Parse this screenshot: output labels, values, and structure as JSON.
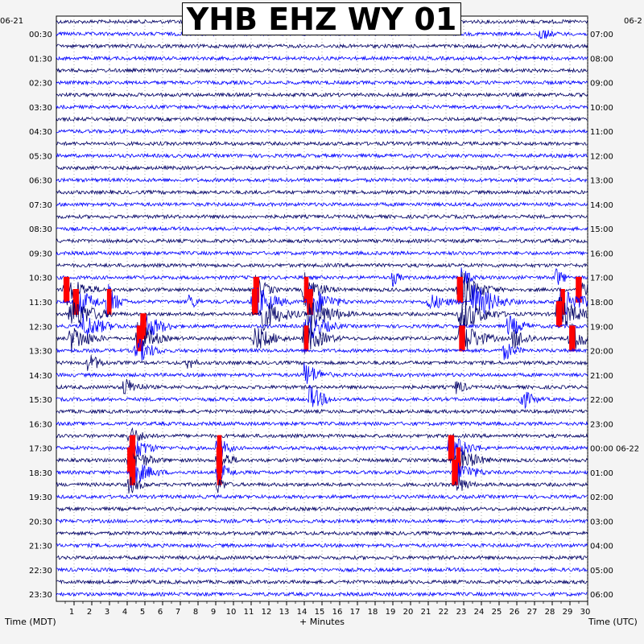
{
  "title": "YHB EHZ WY 01",
  "left_date": "06-21",
  "right_date": "06-2",
  "axis_titles": {
    "left": "Time (MDT)",
    "bottom": "+ Minutes",
    "right": "Time (UTC)"
  },
  "colors": {
    "trace_dark": "#000066",
    "trace_blue": "#0000ff",
    "clipped": "#ff0000",
    "background": "#ffffff",
    "page": "#f4f4f4"
  },
  "chart_data": {
    "type": "line",
    "title": "YHB EHZ WY 01",
    "xlabel": "+ Minutes",
    "ylabel_left": "Time (MDT)",
    "ylabel_right": "Time (UTC)",
    "xlim": [
      0,
      30
    ],
    "x_ticks": [
      1,
      2,
      3,
      4,
      5,
      6,
      7,
      8,
      9,
      10,
      11,
      12,
      13,
      14,
      15,
      16,
      17,
      18,
      19,
      20,
      21,
      22,
      23,
      24,
      25,
      26,
      27,
      28,
      29,
      30
    ],
    "rows_per_hour": 2,
    "num_rows": 48,
    "left_time_labels": [
      "00:30",
      "01:30",
      "02:30",
      "03:30",
      "04:30",
      "05:30",
      "06:30",
      "07:30",
      "08:30",
      "09:30",
      "10:30",
      "11:30",
      "12:30",
      "13:30",
      "14:30",
      "15:30",
      "16:30",
      "17:30",
      "18:30",
      "19:30",
      "20:30",
      "21:30",
      "22:30",
      "23:30"
    ],
    "right_time_labels": [
      "07:00",
      "08:00",
      "09:00",
      "10:00",
      "11:00",
      "12:00",
      "13:00",
      "14:00",
      "15:00",
      "16:00",
      "17:00",
      "18:00",
      "19:00",
      "20:00",
      "21:00",
      "22:00",
      "23:00",
      "00:00 06-22",
      "01:00",
      "02:00",
      "03:00",
      "04:00",
      "05:00",
      "06:00"
    ],
    "trace_colors": [
      "#000066",
      "#0000ff"
    ],
    "events": [
      {
        "row": 1,
        "minute": 27.3,
        "amp": 10,
        "dur": 2.0
      },
      {
        "row": 21,
        "minute": 19.0,
        "amp": 12,
        "dur": 1.2
      },
      {
        "row": 21,
        "minute": 22.8,
        "amp": 16,
        "dur": 1.5
      },
      {
        "row": 21,
        "minute": 28.2,
        "amp": 14,
        "dur": 1.5
      },
      {
        "row": 22,
        "minute": 0.5,
        "amp": 22,
        "dur": 3.0,
        "clip": true
      },
      {
        "row": 22,
        "minute": 11.2,
        "amp": 20,
        "dur": 2.0,
        "clip": true
      },
      {
        "row": 22,
        "minute": 14.0,
        "amp": 24,
        "dur": 2.5,
        "clip": true
      },
      {
        "row": 22,
        "minute": 22.7,
        "amp": 30,
        "dur": 3.0,
        "clip": true
      },
      {
        "row": 22,
        "minute": 29.4,
        "amp": 22,
        "dur": 1.5,
        "clip": true
      },
      {
        "row": 23,
        "minute": 1.0,
        "amp": 22,
        "dur": 3.0,
        "clip": true
      },
      {
        "row": 23,
        "minute": 2.9,
        "amp": 26,
        "dur": 1.5,
        "clip": true
      },
      {
        "row": 23,
        "minute": 7.5,
        "amp": 12,
        "dur": 1.5
      },
      {
        "row": 23,
        "minute": 11.1,
        "amp": 26,
        "dur": 3.0,
        "clip": true
      },
      {
        "row": 23,
        "minute": 14.2,
        "amp": 26,
        "dur": 3.0,
        "clip": true
      },
      {
        "row": 23,
        "minute": 21.0,
        "amp": 12,
        "dur": 3.5
      },
      {
        "row": 23,
        "minute": 23.5,
        "amp": 26,
        "dur": 3.5
      },
      {
        "row": 23,
        "minute": 28.5,
        "amp": 24,
        "dur": 3.0,
        "clip": true
      },
      {
        "row": 24,
        "minute": 0.8,
        "amp": 24,
        "dur": 3.5
      },
      {
        "row": 24,
        "minute": 11.5,
        "amp": 24,
        "dur": 3.5
      },
      {
        "row": 24,
        "minute": 14.2,
        "amp": 26,
        "dur": 3.5
      },
      {
        "row": 24,
        "minute": 22.8,
        "amp": 26,
        "dur": 3.5
      },
      {
        "row": 24,
        "minute": 28.3,
        "amp": 26,
        "dur": 3.0,
        "clip": true
      },
      {
        "row": 25,
        "minute": 1.5,
        "amp": 18,
        "dur": 3.5
      },
      {
        "row": 25,
        "minute": 4.8,
        "amp": 22,
        "dur": 3.0,
        "clip": true
      },
      {
        "row": 25,
        "minute": 14.1,
        "amp": 22,
        "dur": 3.0
      },
      {
        "row": 25,
        "minute": 25.5,
        "amp": 16,
        "dur": 2.5
      },
      {
        "row": 26,
        "minute": 0.8,
        "amp": 20,
        "dur": 3.0
      },
      {
        "row": 26,
        "minute": 4.6,
        "amp": 24,
        "dur": 2.5,
        "clip": true
      },
      {
        "row": 26,
        "minute": 11.2,
        "amp": 18,
        "dur": 3.0
      },
      {
        "row": 26,
        "minute": 14.0,
        "amp": 22,
        "dur": 3.0,
        "clip": true
      },
      {
        "row": 26,
        "minute": 22.8,
        "amp": 26,
        "dur": 3.0,
        "clip": true
      },
      {
        "row": 26,
        "minute": 25.8,
        "amp": 16,
        "dur": 2.5
      },
      {
        "row": 26,
        "minute": 29.0,
        "amp": 22,
        "dur": 2.5,
        "clip": true
      },
      {
        "row": 27,
        "minute": 4.5,
        "amp": 20,
        "dur": 2.5
      },
      {
        "row": 27,
        "minute": 25.3,
        "amp": 14,
        "dur": 2.0
      },
      {
        "row": 28,
        "minute": 1.8,
        "amp": 14,
        "dur": 2.0
      },
      {
        "row": 28,
        "minute": 7.4,
        "amp": 10,
        "dur": 1.5
      },
      {
        "row": 29,
        "minute": 14.0,
        "amp": 18,
        "dur": 2.5
      },
      {
        "row": 30,
        "minute": 3.8,
        "amp": 14,
        "dur": 2.5
      },
      {
        "row": 30,
        "minute": 22.6,
        "amp": 12,
        "dur": 1.5
      },
      {
        "row": 31,
        "minute": 14.3,
        "amp": 18,
        "dur": 2.5
      },
      {
        "row": 31,
        "minute": 26.2,
        "amp": 16,
        "dur": 2.0
      },
      {
        "row": 34,
        "minute": 4.1,
        "amp": 14,
        "dur": 2.5
      },
      {
        "row": 35,
        "minute": 4.2,
        "amp": 20,
        "dur": 2.5,
        "clip": true
      },
      {
        "row": 35,
        "minute": 9.1,
        "amp": 20,
        "dur": 1.5,
        "clip": true
      },
      {
        "row": 35,
        "minute": 22.2,
        "amp": 20,
        "dur": 3.0,
        "clip": true
      },
      {
        "row": 36,
        "minute": 4.1,
        "amp": 18,
        "dur": 3.0,
        "clip": true
      },
      {
        "row": 36,
        "minute": 9.1,
        "amp": 18,
        "dur": 2.0,
        "clip": true
      },
      {
        "row": 36,
        "minute": 22.6,
        "amp": 20,
        "dur": 3.0,
        "clip": true
      },
      {
        "row": 37,
        "minute": 4.2,
        "amp": 20,
        "dur": 3.0,
        "clip": true
      },
      {
        "row": 37,
        "minute": 9.1,
        "amp": 16,
        "dur": 2.0,
        "clip": true
      },
      {
        "row": 37,
        "minute": 22.4,
        "amp": 20,
        "dur": 3.0,
        "clip": true
      },
      {
        "row": 38,
        "minute": 4.1,
        "amp": 14,
        "dur": 2.0
      },
      {
        "row": 38,
        "minute": 9.1,
        "amp": 12,
        "dur": 1.5
      },
      {
        "row": 38,
        "minute": 22.6,
        "amp": 14,
        "dur": 2.0
      }
    ]
  }
}
